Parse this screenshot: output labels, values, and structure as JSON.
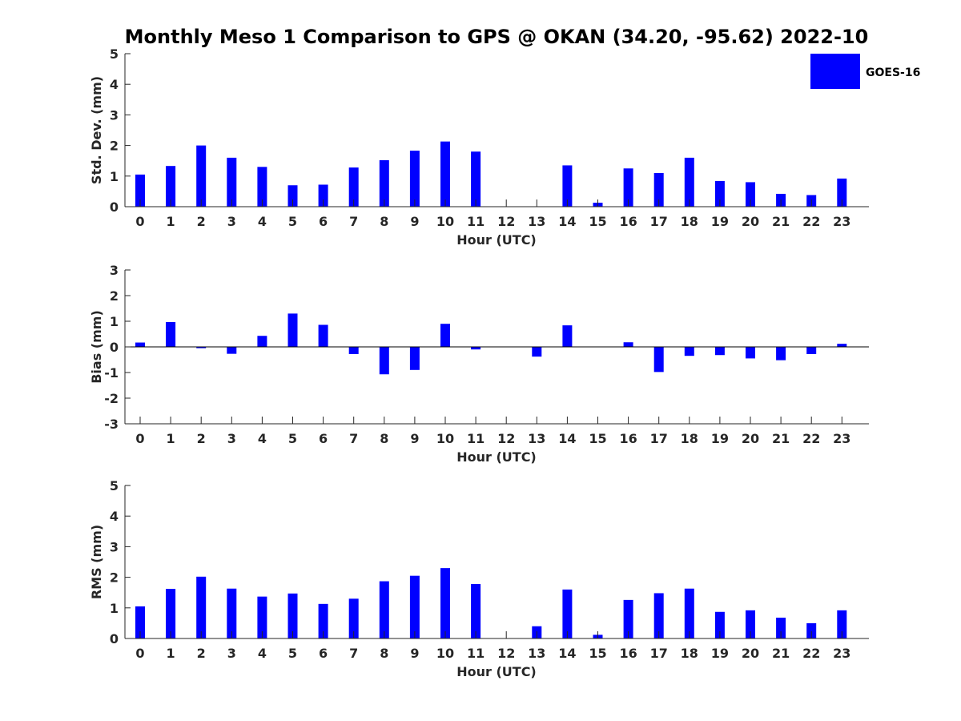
{
  "title": "Monthly Meso 1 Comparison to GPS @ OKAN (34.20, -95.62) 2022-10",
  "legend": {
    "label": "GOES-16",
    "color": "#0000ff"
  },
  "chart_data": [
    {
      "type": "bar",
      "id": "std",
      "categories": [
        "0",
        "1",
        "2",
        "3",
        "4",
        "5",
        "6",
        "7",
        "8",
        "9",
        "10",
        "11",
        "12",
        "13",
        "14",
        "15",
        "16",
        "17",
        "18",
        "19",
        "20",
        "21",
        "22",
        "23"
      ],
      "series": [
        {
          "name": "GOES-16",
          "values": [
            1.05,
            1.33,
            2.0,
            1.6,
            1.3,
            0.7,
            0.72,
            1.28,
            1.52,
            1.83,
            2.13,
            1.8,
            0,
            0,
            1.35,
            0.13,
            1.25,
            1.1,
            1.6,
            0.84,
            0.8,
            0.42,
            0.38,
            0.92
          ]
        }
      ],
      "xlabel": "Hour (UTC)",
      "ylabel": "Std. Dev. (mm)",
      "ylim": [
        0,
        5
      ],
      "yticks": [
        "0",
        "1",
        "2",
        "3",
        "4",
        "5"
      ]
    },
    {
      "type": "bar",
      "id": "bias",
      "categories": [
        "0",
        "1",
        "2",
        "3",
        "4",
        "5",
        "6",
        "7",
        "8",
        "9",
        "10",
        "11",
        "12",
        "13",
        "14",
        "15",
        "16",
        "17",
        "18",
        "19",
        "20",
        "21",
        "22",
        "23"
      ],
      "series": [
        {
          "name": "GOES-16",
          "values": [
            0.17,
            0.97,
            -0.05,
            -0.27,
            0.43,
            1.3,
            0.86,
            -0.28,
            -1.07,
            -0.9,
            0.9,
            -0.1,
            0,
            -0.38,
            0.84,
            0,
            0.18,
            -0.98,
            -0.35,
            -0.32,
            -0.45,
            -0.52,
            -0.28,
            0.12
          ]
        }
      ],
      "xlabel": "Hour (UTC)",
      "ylabel": "Bias (mm)",
      "ylim": [
        -3,
        3
      ],
      "yticks": [
        "-3",
        "-2",
        "-1",
        "0",
        "1",
        "2",
        "3"
      ]
    },
    {
      "type": "bar",
      "id": "rms",
      "categories": [
        "0",
        "1",
        "2",
        "3",
        "4",
        "5",
        "6",
        "7",
        "8",
        "9",
        "10",
        "11",
        "12",
        "13",
        "14",
        "15",
        "16",
        "17",
        "18",
        "19",
        "20",
        "21",
        "22",
        "23"
      ],
      "series": [
        {
          "name": "GOES-16",
          "values": [
            1.05,
            1.62,
            2.02,
            1.63,
            1.37,
            1.47,
            1.13,
            1.3,
            1.87,
            2.05,
            2.3,
            1.78,
            0,
            0.4,
            1.6,
            0.12,
            1.26,
            1.48,
            1.63,
            0.87,
            0.92,
            0.68,
            0.5,
            0.92
          ]
        }
      ],
      "xlabel": "Hour (UTC)",
      "ylabel": "RMS (mm)",
      "ylim": [
        0,
        5
      ],
      "yticks": [
        "0",
        "1",
        "2",
        "3",
        "4",
        "5"
      ]
    }
  ]
}
